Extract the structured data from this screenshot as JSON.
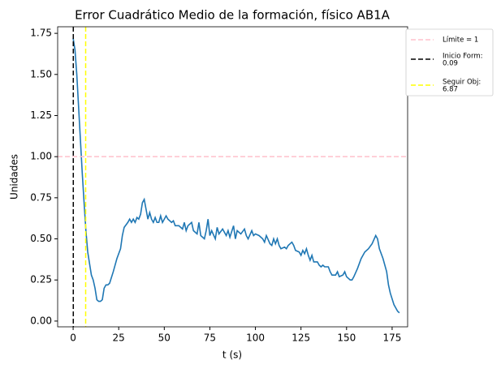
{
  "chart_data": {
    "type": "line",
    "title": "Error Cuadrático Medio de la formación, físico AB1A",
    "xlabel": "t (s)",
    "ylabel": "Unidades",
    "xlim": [
      -8.5,
      183.5
    ],
    "ylim": [
      -0.035,
      1.79
    ],
    "xticks": [
      0,
      25,
      50,
      75,
      100,
      125,
      150,
      175
    ],
    "yticks": [
      {
        "value": 0,
        "label": "0.00"
      },
      {
        "value": 0.25,
        "label": "0.25"
      },
      {
        "value": 0.5,
        "label": "0.50"
      },
      {
        "value": 0.75,
        "label": "0.75"
      },
      {
        "value": 1,
        "label": "1.00"
      },
      {
        "value": 1.25,
        "label": "1.25"
      },
      {
        "value": 1.5,
        "label": "1.50"
      },
      {
        "value": 1.75,
        "label": "1.75"
      }
    ],
    "legend_position": "outside upper right",
    "series": [
      {
        "color": "#1f77b4",
        "x": [
          0,
          1,
          2,
          3,
          4,
          5,
          6,
          7,
          8,
          9,
          10,
          11,
          12,
          13,
          14,
          15,
          16,
          17,
          18,
          19,
          20,
          22,
          24,
          26,
          27,
          28,
          30,
          31,
          32,
          33,
          34,
          35,
          36,
          37,
          38,
          39,
          40,
          41,
          42,
          43,
          44,
          45,
          46,
          47,
          48,
          49,
          50,
          51,
          52,
          54,
          55,
          56,
          58,
          60,
          61,
          62,
          63,
          65,
          66,
          68,
          69,
          70,
          72,
          73,
          74,
          75,
          76,
          78,
          79,
          80,
          82,
          84,
          85,
          86,
          88,
          89,
          90,
          92,
          94,
          95,
          96,
          98,
          99,
          100,
          102,
          104,
          105,
          106,
          108,
          109,
          110,
          111,
          112,
          113,
          114,
          116,
          117,
          118,
          120,
          121,
          122,
          124,
          125,
          126,
          127,
          128,
          129,
          130,
          131,
          132,
          134,
          135,
          136,
          137,
          138,
          140,
          141,
          142,
          144,
          145,
          146,
          148,
          149,
          150,
          152,
          153,
          154,
          156,
          158,
          160,
          162,
          164,
          166,
          167,
          168,
          170,
          172,
          173,
          174,
          176,
          178,
          179
        ],
        "values": [
          1.72,
          1.65,
          1.5,
          1.3,
          1.1,
          0.9,
          0.72,
          0.55,
          0.42,
          0.35,
          0.28,
          0.25,
          0.2,
          0.13,
          0.12,
          0.12,
          0.13,
          0.2,
          0.22,
          0.22,
          0.23,
          0.3,
          0.38,
          0.44,
          0.52,
          0.57,
          0.6,
          0.62,
          0.6,
          0.62,
          0.6,
          0.63,
          0.62,
          0.65,
          0.72,
          0.74,
          0.68,
          0.62,
          0.66,
          0.62,
          0.6,
          0.63,
          0.6,
          0.6,
          0.64,
          0.6,
          0.62,
          0.64,
          0.62,
          0.6,
          0.61,
          0.58,
          0.58,
          0.56,
          0.6,
          0.55,
          0.58,
          0.6,
          0.55,
          0.53,
          0.6,
          0.52,
          0.5,
          0.55,
          0.62,
          0.52,
          0.55,
          0.5,
          0.57,
          0.53,
          0.56,
          0.52,
          0.55,
          0.51,
          0.58,
          0.5,
          0.55,
          0.53,
          0.56,
          0.52,
          0.5,
          0.55,
          0.52,
          0.53,
          0.52,
          0.5,
          0.48,
          0.52,
          0.47,
          0.46,
          0.5,
          0.47,
          0.5,
          0.46,
          0.44,
          0.45,
          0.44,
          0.46,
          0.48,
          0.46,
          0.43,
          0.42,
          0.4,
          0.43,
          0.41,
          0.44,
          0.4,
          0.37,
          0.4,
          0.36,
          0.36,
          0.34,
          0.33,
          0.34,
          0.33,
          0.33,
          0.3,
          0.28,
          0.28,
          0.3,
          0.27,
          0.28,
          0.3,
          0.27,
          0.25,
          0.25,
          0.27,
          0.32,
          0.38,
          0.42,
          0.44,
          0.47,
          0.52,
          0.5,
          0.44,
          0.38,
          0.3,
          0.22,
          0.17,
          0.1,
          0.06,
          0.05
        ]
      }
    ],
    "reference_lines": [
      {
        "label": [
          "Límite = 1"
        ],
        "orientation": "horizontal",
        "value": 1,
        "color": "pink"
      },
      {
        "label": [
          "Inicio Form:",
          "0.09"
        ],
        "orientation": "vertical",
        "value": 0.09,
        "color": "black"
      },
      {
        "label": [
          "Seguir Obj:",
          "6.87"
        ],
        "orientation": "vertical",
        "value": 6.87,
        "color": "yellow"
      }
    ]
  }
}
